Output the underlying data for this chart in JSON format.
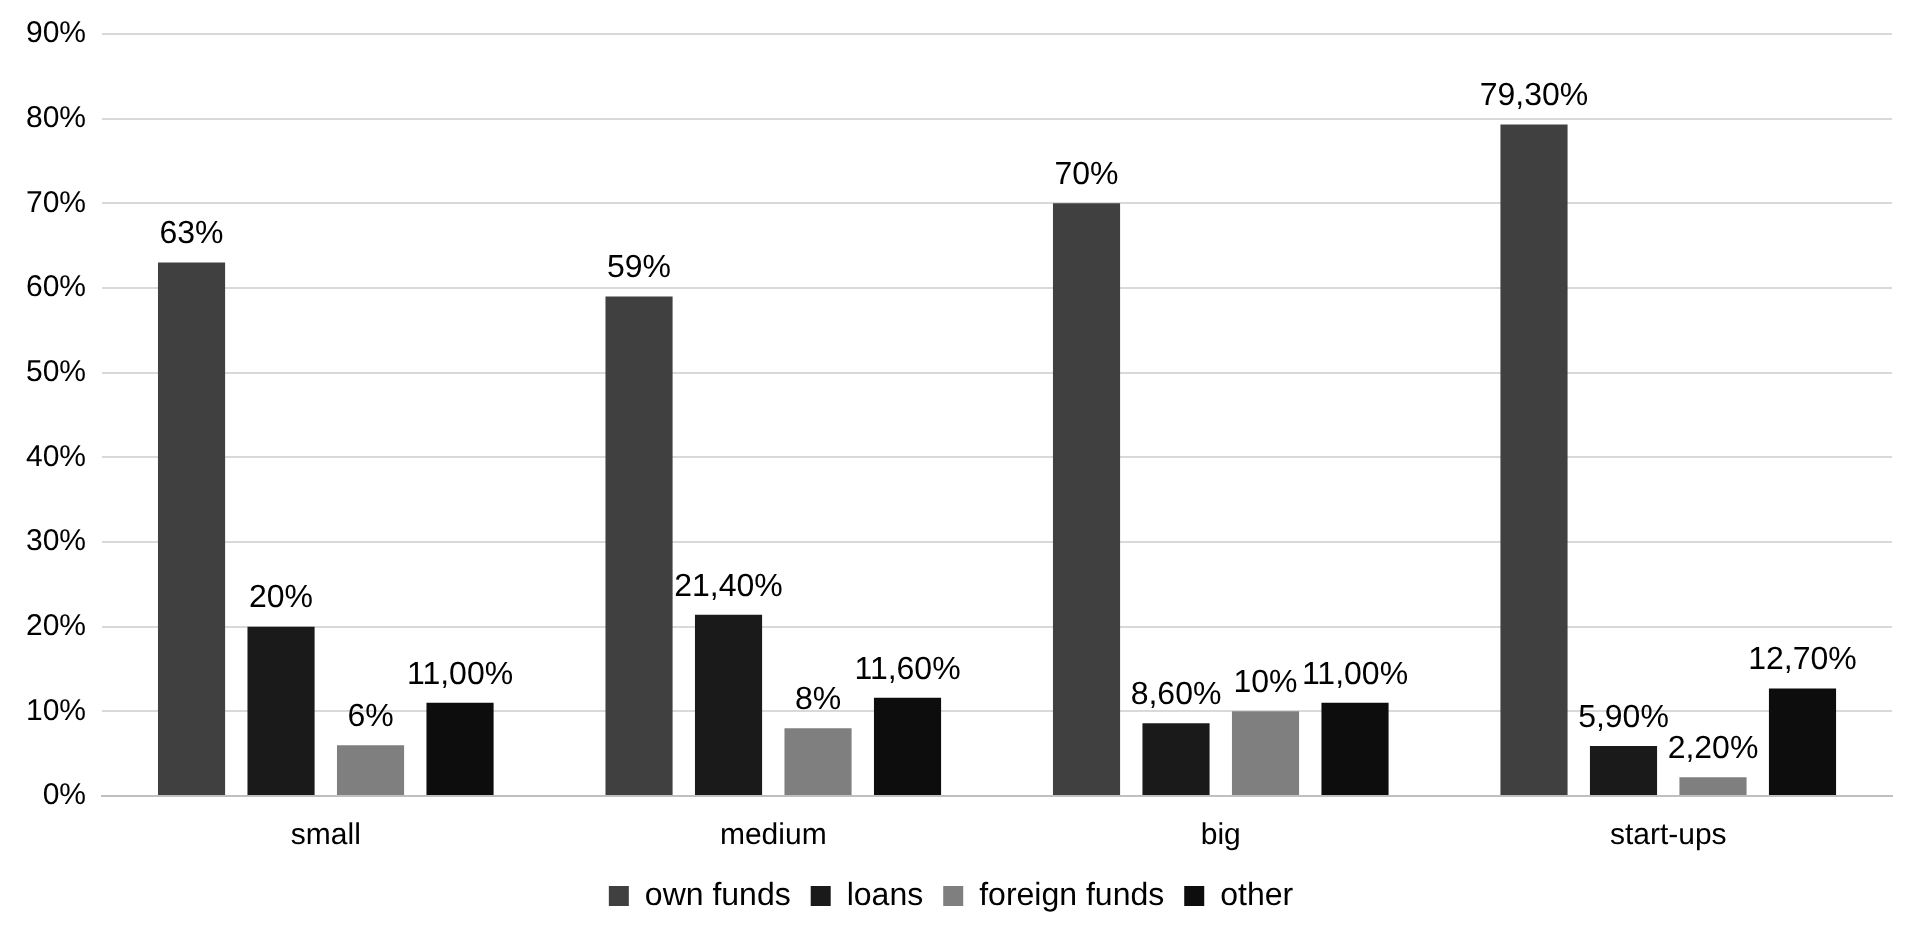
{
  "chart_data": {
    "type": "bar",
    "categories": [
      "small",
      "medium",
      "big",
      "start-ups"
    ],
    "series": [
      {
        "name": "own funds",
        "color": "#404040",
        "values": [
          63,
          59,
          70,
          79.3
        ],
        "value_labels": [
          "63%",
          "59%",
          "70%",
          "79,30%"
        ]
      },
      {
        "name": "loans",
        "color": "#1a1a1a",
        "values": [
          20,
          21.4,
          8.6,
          5.9
        ],
        "value_labels": [
          "20%",
          "21,40%",
          "8,60%",
          "5,90%"
        ]
      },
      {
        "name": "foreign funds",
        "color": "#7f7f7f",
        "values": [
          6,
          8,
          10,
          2.2
        ],
        "value_labels": [
          "6%",
          "8%",
          "10%",
          "2,20%"
        ]
      },
      {
        "name": "other",
        "color": "#0d0d0d",
        "values": [
          11,
          11.6,
          11,
          12.7
        ],
        "value_labels": [
          "11,00%",
          "11,60%",
          "11,00%",
          "12,70%"
        ]
      }
    ],
    "ylim": [
      0,
      90
    ],
    "yticks": [
      {
        "value": 0,
        "label": "0%"
      },
      {
        "value": 10,
        "label": "10%"
      },
      {
        "value": 20,
        "label": "20%"
      },
      {
        "value": 30,
        "label": "30%"
      },
      {
        "value": 40,
        "label": "40%"
      },
      {
        "value": 50,
        "label": "50%"
      },
      {
        "value": 60,
        "label": "60%"
      },
      {
        "value": 70,
        "label": "70%"
      },
      {
        "value": 80,
        "label": "80%"
      },
      {
        "value": 90,
        "label": "90%"
      }
    ],
    "grid": "y",
    "legend": "bottom"
  }
}
